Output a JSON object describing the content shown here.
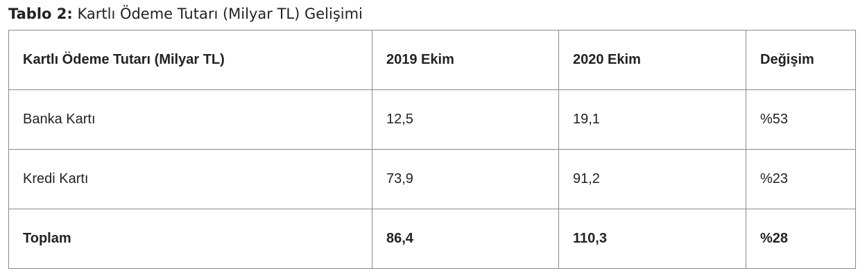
{
  "header": {
    "label": "Tablo 2:",
    "title": "Kartlı Ödeme Tutarı (Milyar TL) Gelişimi"
  },
  "table": {
    "columns": [
      "Kartlı Ödeme Tutarı (Milyar TL)",
      "2019 Ekim",
      "2020 Ekim",
      "Değişim"
    ],
    "rows": [
      [
        "Banka Kartı",
        "12,5",
        "19,1",
        "%53"
      ],
      [
        "Kredi Kartı",
        "73,9",
        "91,2",
        "%23"
      ],
      [
        "Toplam",
        "86,4",
        "110,3",
        "%28"
      ]
    ]
  }
}
